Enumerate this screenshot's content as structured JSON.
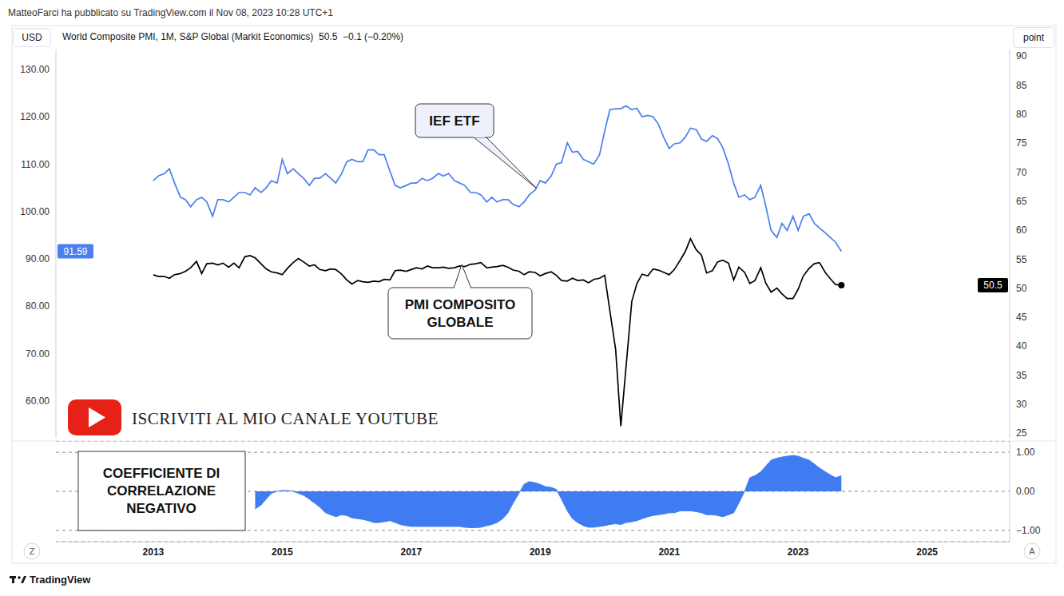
{
  "header": "MatteoFarci ha pubblicato su TradingView.com il Nov 08, 2023 10:28 UTC+1",
  "footer": "TradingView",
  "buttons": [
    "Z",
    "A"
  ],
  "chart_data": [
    {
      "type": "line",
      "title": "World Composite PMI, 1M, S&P Global (Markit Economics)",
      "subtitle": "50.5  −0.1 (−0.20%)",
      "y_label": "USD",
      "y2_label": "point",
      "annotations": [
        {
          "text": "ISCRIVITI AL MIO CANALE YOUTUBE"
        }
      ],
      "tick_labels": "y",
      "xlim": [
        2011.49,
        2026.28
      ],
      "xticks": [
        2013,
        2015,
        2017,
        2019,
        2021,
        2023,
        2025
      ],
      "ylim": [
        52.2,
        134.2
      ],
      "yticks": [
        {
          "value": 60,
          "label": "60.00"
        },
        {
          "value": 70,
          "label": "70.00"
        },
        {
          "value": 80,
          "label": "80.00"
        },
        {
          "value": 90,
          "label": "90.00"
        },
        {
          "value": 100,
          "label": "100.00"
        },
        {
          "value": 110,
          "label": "110.00"
        },
        {
          "value": 120,
          "label": "120.00"
        },
        {
          "value": 130,
          "label": "130.00"
        }
      ],
      "y2lim": [
        24.2,
        91.1
      ],
      "y2ticks": [
        25,
        30,
        35,
        40,
        45,
        50,
        55,
        60,
        65,
        70,
        75,
        80,
        85,
        90
      ],
      "x": [
        2013.0,
        2013.08,
        2013.17,
        2013.25,
        2013.33,
        2013.42,
        2013.5,
        2013.58,
        2013.67,
        2013.75,
        2013.83,
        2013.92,
        2014.0,
        2014.08,
        2014.17,
        2014.25,
        2014.33,
        2014.42,
        2014.5,
        2014.58,
        2014.67,
        2014.75,
        2014.83,
        2014.92,
        2015.0,
        2015.08,
        2015.17,
        2015.25,
        2015.33,
        2015.42,
        2015.5,
        2015.58,
        2015.67,
        2015.75,
        2015.83,
        2015.92,
        2016.0,
        2016.08,
        2016.17,
        2016.25,
        2016.33,
        2016.42,
        2016.5,
        2016.58,
        2016.67,
        2016.75,
        2016.83,
        2016.92,
        2017.0,
        2017.08,
        2017.17,
        2017.25,
        2017.33,
        2017.42,
        2017.5,
        2017.58,
        2017.67,
        2017.75,
        2017.83,
        2017.92,
        2018.0,
        2018.08,
        2018.17,
        2018.25,
        2018.33,
        2018.42,
        2018.5,
        2018.58,
        2018.67,
        2018.75,
        2018.83,
        2018.92,
        2019.0,
        2019.08,
        2019.17,
        2019.25,
        2019.33,
        2019.42,
        2019.5,
        2019.58,
        2019.67,
        2019.75,
        2019.83,
        2019.92,
        2020.0,
        2020.08,
        2020.17,
        2020.25,
        2020.33,
        2020.42,
        2020.5,
        2020.58,
        2020.67,
        2020.75,
        2020.83,
        2020.92,
        2021.0,
        2021.08,
        2021.17,
        2021.25,
        2021.33,
        2021.42,
        2021.5,
        2021.58,
        2021.67,
        2021.75,
        2021.83,
        2021.92,
        2022.0,
        2022.08,
        2022.17,
        2022.25,
        2022.33,
        2022.42,
        2022.5,
        2022.58,
        2022.67,
        2022.75,
        2022.83,
        2022.92,
        2023.0,
        2023.08,
        2023.17,
        2023.25,
        2023.33,
        2023.42,
        2023.5,
        2023.58,
        2023.67
      ],
      "series": [
        {
          "name": "IEF ETF",
          "color": "#4a7ff0",
          "values": [
            106.5,
            107.5,
            108,
            109,
            106,
            103,
            102.5,
            101,
            102.5,
            103,
            102,
            99,
            102.5,
            102.5,
            102,
            103,
            104,
            104,
            103.5,
            105,
            104,
            105,
            106.5,
            106,
            111,
            108,
            109,
            108,
            107,
            105.5,
            107,
            107,
            108,
            107,
            106,
            108,
            110.5,
            111,
            110.5,
            110.5,
            113,
            113,
            112,
            112,
            108.5,
            105.5,
            105,
            105.5,
            106,
            106,
            107,
            106.5,
            107,
            108,
            107.5,
            108,
            106.5,
            106,
            105.5,
            104,
            104,
            103.5,
            102,
            103,
            102,
            102.5,
            102.5,
            101.5,
            101,
            102,
            103.5,
            104.5,
            106.5,
            106,
            107.5,
            110,
            110.3,
            114.5,
            112.5,
            112.7,
            111,
            110.5,
            110,
            112,
            117,
            121.5,
            121.7,
            121.7,
            122.3,
            121.5,
            121.8,
            120,
            120.3,
            120,
            118.5,
            115.5,
            113.3,
            114.3,
            114.5,
            115.7,
            117.6,
            117.3,
            115.3,
            114.8,
            116,
            115.4,
            113.5,
            110,
            106,
            103,
            103.5,
            102.5,
            103,
            105.5,
            101,
            96,
            94.5,
            97.5,
            96,
            99,
            96,
            99,
            99.5,
            97.5,
            96.5,
            95.5,
            94.5,
            93.5,
            91.59
          ]
        },
        {
          "name": "PMI COMPOSITO\nGLOBALE",
          "color": "#000000",
          "axis": "y2",
          "values": [
            52.3,
            52.0,
            52.0,
            51.7,
            52.3,
            52.5,
            52.9,
            53.5,
            54.6,
            52.5,
            54.2,
            54.3,
            54.0,
            54.3,
            53.6,
            54.3,
            53.5,
            55.4,
            55.6,
            55.2,
            54.2,
            53.3,
            52.8,
            52.6,
            52.3,
            53.4,
            54.4,
            55.1,
            54.5,
            53.8,
            54.0,
            53.2,
            53.0,
            53.3,
            53.2,
            52.4,
            51.4,
            50.7,
            51.3,
            51.1,
            51.0,
            51.2,
            51.1,
            51.5,
            51.4,
            53.0,
            53.1,
            52.9,
            53.2,
            53.5,
            53.3,
            53.8,
            53.5,
            53.5,
            53.6,
            53.4,
            53.5,
            53.8,
            53.7,
            54.1,
            54.2,
            54.4,
            53.5,
            53.6,
            53.7,
            53.9,
            53.6,
            53.1,
            52.9,
            52.3,
            52.8,
            52.7,
            52.1,
            52.5,
            52.8,
            52.2,
            51.3,
            51.2,
            51.7,
            51.3,
            51.4,
            50.9,
            51.5,
            51.7,
            52.2,
            46.1,
            39.4,
            26.2,
            36.3,
            47.7,
            50.8,
            52.4,
            52.1,
            53.3,
            53.1,
            52.7,
            52.3,
            53.2,
            54.8,
            56.3,
            58.5,
            56.6,
            55.7,
            52.6,
            53.0,
            54.5,
            54.8,
            54.3,
            51.4,
            53.6,
            52.7,
            50.8,
            51.3,
            53.5,
            50.8,
            49.3,
            50.0,
            49.0,
            48.2,
            48.2,
            49.8,
            52.1,
            53.4,
            54.2,
            54.4,
            52.7,
            51.6,
            50.6,
            50.5
          ]
        }
      ]
    },
    {
      "type": "area",
      "title": "COEFFICIENTE DI\nCORRELAZIONE\nNEGATIVO",
      "color": "#3f7cf2",
      "grid": true,
      "xlim": [
        2011.49,
        2026.28
      ],
      "xticks": [
        2013,
        2015,
        2017,
        2019,
        2021,
        2023,
        2025
      ],
      "ylim": [
        -1.29,
        1.29
      ],
      "yticks": [
        {
          "value": -1,
          "label": "−1.00"
        },
        {
          "value": 0,
          "label": "0.00"
        },
        {
          "value": 1,
          "label": "1.00"
        }
      ],
      "x": [
        2013.0,
        2013.08,
        2013.17,
        2013.25,
        2013.33,
        2013.42,
        2013.5,
        2013.58,
        2013.67,
        2013.75,
        2013.83,
        2013.92,
        2014.0,
        2014.08,
        2014.17,
        2014.25,
        2014.33,
        2014.42,
        2014.5,
        2014.58,
        2014.67,
        2014.75,
        2014.83,
        2014.92,
        2015.0,
        2015.08,
        2015.17,
        2015.25,
        2015.33,
        2015.42,
        2015.5,
        2015.58,
        2015.67,
        2015.75,
        2015.83,
        2015.92,
        2016.0,
        2016.08,
        2016.17,
        2016.25,
        2016.33,
        2016.42,
        2016.5,
        2016.58,
        2016.67,
        2016.75,
        2016.83,
        2016.92,
        2017.0,
        2017.08,
        2017.17,
        2017.25,
        2017.33,
        2017.42,
        2017.5,
        2017.58,
        2017.67,
        2017.75,
        2017.83,
        2017.92,
        2018.0,
        2018.08,
        2018.17,
        2018.25,
        2018.33,
        2018.42,
        2018.5,
        2018.58,
        2018.67,
        2018.75,
        2018.83,
        2018.92,
        2019.0,
        2019.08,
        2019.17,
        2019.25,
        2019.33,
        2019.42,
        2019.5,
        2019.58,
        2019.67,
        2019.75,
        2019.83,
        2019.92,
        2020.0,
        2020.08,
        2020.17,
        2020.25,
        2020.33,
        2020.42,
        2020.5,
        2020.58,
        2020.67,
        2020.75,
        2020.83,
        2020.92,
        2021.0,
        2021.08,
        2021.17,
        2021.25,
        2021.33,
        2021.42,
        2021.5,
        2021.58,
        2021.67,
        2021.75,
        2021.83,
        2021.92,
        2022.0,
        2022.08,
        2022.17,
        2022.25,
        2022.33,
        2022.42,
        2022.5,
        2022.58,
        2022.67,
        2022.75,
        2022.83,
        2022.92,
        2023.0,
        2023.08,
        2023.17,
        2023.25,
        2023.33,
        2023.42,
        2023.5,
        2023.58,
        2023.67
      ],
      "values": [
        null,
        null,
        null,
        null,
        null,
        null,
        null,
        null,
        null,
        null,
        null,
        null,
        null,
        null,
        null,
        null,
        null,
        null,
        null,
        -0.45,
        -0.35,
        -0.2,
        -0.05,
        0.0,
        0.02,
        0.02,
        0.0,
        -0.05,
        -0.1,
        -0.2,
        -0.3,
        -0.4,
        -0.55,
        -0.6,
        -0.65,
        -0.6,
        -0.62,
        -0.68,
        -0.7,
        -0.72,
        -0.75,
        -0.8,
        -0.8,
        -0.78,
        -0.75,
        -0.8,
        -0.85,
        -0.88,
        -0.9,
        -0.9,
        -0.9,
        -0.9,
        -0.9,
        -0.9,
        -0.9,
        -0.9,
        -0.9,
        -0.9,
        -0.92,
        -0.93,
        -0.93,
        -0.92,
        -0.88,
        -0.85,
        -0.8,
        -0.7,
        -0.55,
        -0.3,
        -0.05,
        0.18,
        0.25,
        0.22,
        0.18,
        0.12,
        0.1,
        0.05,
        -0.2,
        -0.5,
        -0.7,
        -0.8,
        -0.88,
        -0.92,
        -0.92,
        -0.9,
        -0.88,
        -0.85,
        -0.83,
        -0.85,
        -0.8,
        -0.78,
        -0.75,
        -0.7,
        -0.65,
        -0.62,
        -0.6,
        -0.58,
        -0.55,
        -0.55,
        -0.5,
        -0.5,
        -0.5,
        -0.52,
        -0.55,
        -0.6,
        -0.6,
        -0.62,
        -0.65,
        -0.6,
        -0.55,
        -0.3,
        0.0,
        0.35,
        0.4,
        0.5,
        0.65,
        0.8,
        0.85,
        0.88,
        0.9,
        0.92,
        0.9,
        0.85,
        0.8,
        0.7,
        0.6,
        0.5,
        0.42,
        0.35,
        0.4
      ]
    }
  ]
}
